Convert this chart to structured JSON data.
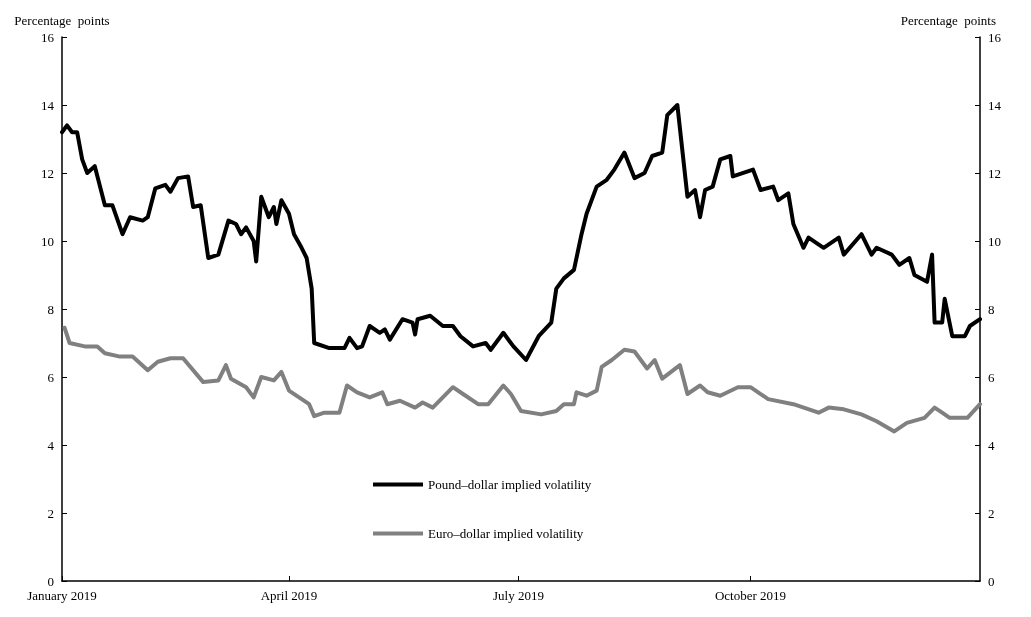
{
  "chart_data": {
    "type": "line",
    "ylabel": "Percentage  points",
    "y2label": "Percentage  points",
    "xlim": [
      "2019-01-01",
      "2019-12-31"
    ],
    "xticks": [
      {
        "value": "2019-01-01",
        "label": "January 2019"
      },
      {
        "value": "2019-04-01",
        "label": "April 2019"
      },
      {
        "value": "2019-07-01",
        "label": "July 2019"
      },
      {
        "value": "2019-10-01",
        "label": "October 2019"
      }
    ],
    "ylim": [
      0,
      16
    ],
    "yticks": [
      0,
      2,
      4,
      6,
      8,
      10,
      12,
      14,
      16
    ],
    "y2lim": [
      0,
      16
    ],
    "y2ticks": [
      0,
      2,
      4,
      6,
      8,
      10,
      12,
      14,
      16
    ],
    "grid": false,
    "legend": "bottom",
    "marker": "none",
    "line_style": "solid",
    "series": [
      {
        "name": "Pound–dollar implied volatility",
        "color": "#000000",
        "x": [
          "2019-01-01",
          "2019-01-03",
          "2019-01-05",
          "2019-01-07",
          "2019-01-09",
          "2019-01-11",
          "2019-01-14",
          "2019-01-18",
          "2019-01-21",
          "2019-01-25",
          "2019-01-28",
          "2019-02-02",
          "2019-02-04",
          "2019-02-07",
          "2019-02-11",
          "2019-02-13",
          "2019-02-16",
          "2019-02-20",
          "2019-02-22",
          "2019-02-25",
          "2019-02-28",
          "2019-03-04",
          "2019-03-08",
          "2019-03-11",
          "2019-03-13",
          "2019-03-15",
          "2019-03-18",
          "2019-03-19",
          "2019-03-21",
          "2019-03-24",
          "2019-03-26",
          "2019-03-27",
          "2019-03-29",
          "2019-04-01",
          "2019-04-03",
          "2019-04-06",
          "2019-04-08",
          "2019-04-10",
          "2019-04-11",
          "2019-04-17",
          "2019-04-23",
          "2019-04-25",
          "2019-04-28",
          "2019-04-30",
          "2019-05-03",
          "2019-05-07",
          "2019-05-09",
          "2019-05-11",
          "2019-05-16",
          "2019-05-20",
          "2019-05-21",
          "2019-05-22",
          "2019-05-27",
          "2019-06-01",
          "2019-06-05",
          "2019-06-08",
          "2019-06-13",
          "2019-06-18",
          "2019-06-20",
          "2019-06-25",
          "2019-06-29",
          "2019-07-04",
          "2019-07-09",
          "2019-07-14",
          "2019-07-16",
          "2019-07-19",
          "2019-07-23",
          "2019-07-26",
          "2019-07-28",
          "2019-08-01",
          "2019-08-05",
          "2019-08-08",
          "2019-08-12",
          "2019-08-16",
          "2019-08-20",
          "2019-08-23",
          "2019-08-27",
          "2019-08-29",
          "2019-09-02",
          "2019-09-06",
          "2019-09-09",
          "2019-09-11",
          "2019-09-13",
          "2019-09-16",
          "2019-09-19",
          "2019-09-23",
          "2019-09-24",
          "2019-10-02",
          "2019-10-05",
          "2019-10-10",
          "2019-10-12",
          "2019-10-16",
          "2019-10-18",
          "2019-10-22",
          "2019-10-24",
          "2019-10-30",
          "2019-11-05",
          "2019-11-07",
          "2019-11-14",
          "2019-11-18",
          "2019-11-20",
          "2019-11-26",
          "2019-11-29",
          "2019-12-03",
          "2019-12-05",
          "2019-12-10",
          "2019-12-12",
          "2019-12-13",
          "2019-12-16",
          "2019-12-17",
          "2019-12-20",
          "2019-12-25",
          "2019-12-27",
          "2019-12-31"
        ],
        "values": [
          13.2,
          13.4,
          13.2,
          13.2,
          12.4,
          12.0,
          12.2,
          11.05,
          11.05,
          10.2,
          10.7,
          10.6,
          10.7,
          11.55,
          11.65,
          11.45,
          11.85,
          11.9,
          11.0,
          11.05,
          9.5,
          9.6,
          10.6,
          10.5,
          10.2,
          10.4,
          10.0,
          9.4,
          11.3,
          10.7,
          11.0,
          10.5,
          11.2,
          10.8,
          10.2,
          9.8,
          9.5,
          8.6,
          7.0,
          6.85,
          6.85,
          7.15,
          6.85,
          6.9,
          7.5,
          7.3,
          7.4,
          7.1,
          7.7,
          7.6,
          7.25,
          7.7,
          7.8,
          7.5,
          7.5,
          7.2,
          6.9,
          7.0,
          6.8,
          7.3,
          6.9,
          6.5,
          7.2,
          7.6,
          8.6,
          8.9,
          9.15,
          10.2,
          10.8,
          11.6,
          11.8,
          12.1,
          12.6,
          11.85,
          12.0,
          12.5,
          12.6,
          13.7,
          14.0,
          11.3,
          11.5,
          10.7,
          11.5,
          11.6,
          12.4,
          12.5,
          11.9,
          12.1,
          11.5,
          11.6,
          11.2,
          11.4,
          10.5,
          9.8,
          10.1,
          9.8,
          10.1,
          9.6,
          10.2,
          9.6,
          9.8,
          9.6,
          9.3,
          9.5,
          9.0,
          8.8,
          9.6,
          7.6,
          7.6,
          8.3,
          7.2,
          7.2,
          7.5,
          7.7
        ]
      },
      {
        "name": "Euro–dollar implied volatility",
        "color": "#808080",
        "x": [
          "2019-01-02",
          "2019-01-04",
          "2019-01-10",
          "2019-01-15",
          "2019-01-18",
          "2019-01-24",
          "2019-01-29",
          "2019-02-04",
          "2019-02-08",
          "2019-02-13",
          "2019-02-18",
          "2019-02-26",
          "2019-03-04",
          "2019-03-07",
          "2019-03-09",
          "2019-03-15",
          "2019-03-18",
          "2019-03-21",
          "2019-03-26",
          "2019-03-29",
          "2019-04-01",
          "2019-04-05",
          "2019-04-09",
          "2019-04-11",
          "2019-04-15",
          "2019-04-21",
          "2019-04-24",
          "2019-04-28",
          "2019-05-03",
          "2019-05-08",
          "2019-05-10",
          "2019-05-15",
          "2019-05-21",
          "2019-05-24",
          "2019-05-28",
          "2019-06-05",
          "2019-06-09",
          "2019-06-15",
          "2019-06-19",
          "2019-06-25",
          "2019-06-28",
          "2019-07-02",
          "2019-07-10",
          "2019-07-16",
          "2019-07-19",
          "2019-07-23",
          "2019-07-24",
          "2019-07-28",
          "2019-08-01",
          "2019-08-03",
          "2019-08-07",
          "2019-08-12",
          "2019-08-16",
          "2019-08-21",
          "2019-08-24",
          "2019-08-27",
          "2019-09-03",
          "2019-09-06",
          "2019-09-11",
          "2019-09-14",
          "2019-09-19",
          "2019-09-26",
          "2019-10-01",
          "2019-10-08",
          "2019-10-18",
          "2019-10-28",
          "2019-11-01",
          "2019-11-07",
          "2019-11-14",
          "2019-11-20",
          "2019-11-27",
          "2019-12-02",
          "2019-12-09",
          "2019-12-13",
          "2019-12-16",
          "2019-12-19",
          "2019-12-26",
          "2019-12-31"
        ],
        "values": [
          7.45,
          7.0,
          6.9,
          6.9,
          6.7,
          6.6,
          6.6,
          6.2,
          6.45,
          6.55,
          6.55,
          5.85,
          5.9,
          6.35,
          5.95,
          5.7,
          5.4,
          6.0,
          5.9,
          6.15,
          5.6,
          5.4,
          5.2,
          4.85,
          4.95,
          4.95,
          5.75,
          5.55,
          5.4,
          5.55,
          5.2,
          5.3,
          5.1,
          5.25,
          5.1,
          5.7,
          5.5,
          5.2,
          5.2,
          5.75,
          5.5,
          5.0,
          4.9,
          5.0,
          5.2,
          5.2,
          5.55,
          5.45,
          5.6,
          6.3,
          6.5,
          6.8,
          6.75,
          6.25,
          6.5,
          5.95,
          6.35,
          5.5,
          5.75,
          5.55,
          5.45,
          5.7,
          5.7,
          5.35,
          5.2,
          4.95,
          5.1,
          5.05,
          4.9,
          4.7,
          4.4,
          4.65,
          4.8,
          5.1,
          4.95,
          4.8,
          4.8,
          5.2
        ]
      }
    ]
  }
}
